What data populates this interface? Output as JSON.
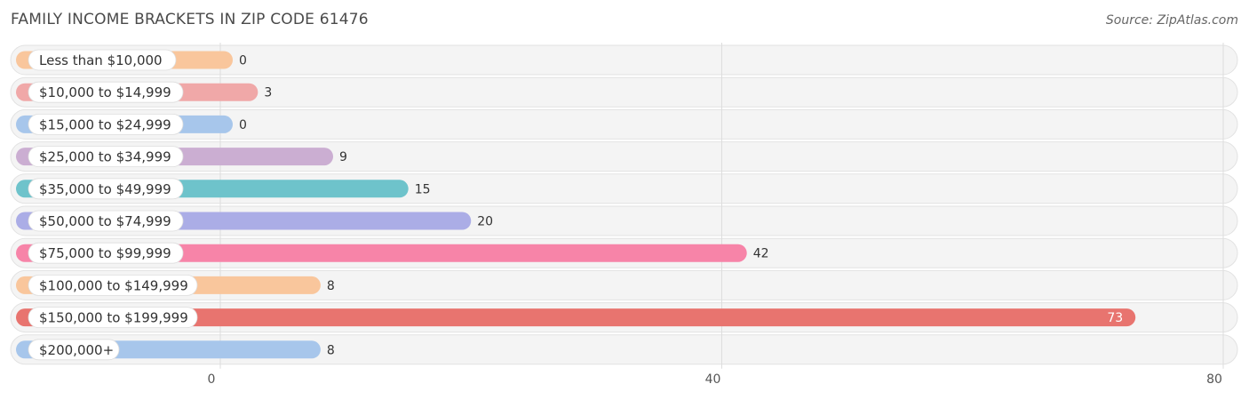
{
  "chart_data": {
    "type": "bar",
    "orientation": "horizontal",
    "title": "FAMILY INCOME BRACKETS IN ZIP CODE 61476",
    "source": "Source: ZipAtlas.com",
    "categories": [
      "Less than $10,000",
      "$10,000 to $14,999",
      "$15,000 to $24,999",
      "$25,000 to $34,999",
      "$35,000 to $49,999",
      "$50,000 to $74,999",
      "$75,000 to $99,999",
      "$100,000 to $149,999",
      "$150,000 to $199,999",
      "$200,000+"
    ],
    "values": [
      0,
      3,
      0,
      9,
      15,
      20,
      42,
      8,
      73,
      8
    ],
    "colors": [
      "#F9C69C",
      "#F0A8A8",
      "#A7C6EB",
      "#CBAED2",
      "#6EC3CB",
      "#ABADE6",
      "#F784A8",
      "#F9C69C",
      "#E8746F",
      "#A7C6EB"
    ],
    "xlim": [
      0,
      80
    ],
    "xticks": [
      0,
      40,
      80
    ],
    "grid": true
  }
}
